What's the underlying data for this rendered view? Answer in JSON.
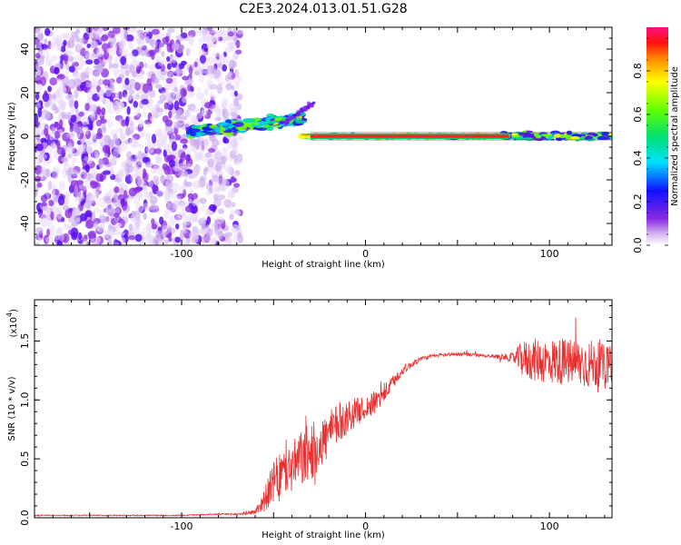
{
  "title": "C2E3.2024.013.01.51.G28",
  "colors": {
    "snr_line": "#e83030",
    "axis": "#000000",
    "background": "#ffffff"
  },
  "chart_data": [
    {
      "type": "heatmap",
      "xlabel": "Height of straight line (km)",
      "ylabel": "Frequency (Hz)",
      "xlim": [
        -180,
        134
      ],
      "ylim": [
        -50,
        50
      ],
      "xticks": [
        -100,
        0,
        100
      ],
      "yticks": [
        -40,
        -20,
        0,
        20,
        40
      ],
      "grid": false,
      "description_regions": [
        {
          "x_range": [
            -180,
            -75
          ],
          "freq_range": [
            -50,
            50
          ],
          "level": "low",
          "note": "broadband noise"
        },
        {
          "x_range": [
            -95,
            -35
          ],
          "freq_center_start": 2,
          "freq_center_end": 8,
          "level": "medium"
        },
        {
          "x_range": [
            -35,
            134
          ],
          "freq_center": 0,
          "level": "high"
        }
      ],
      "colorbar": {
        "label": "Normalized spectral amplitude",
        "range": [
          0.0,
          1.0
        ],
        "ticks": [
          "0.0",
          "0.2",
          "0.4",
          "0.6",
          "0.8"
        ],
        "colormap": "rainbow"
      }
    },
    {
      "type": "line",
      "xlabel": "Height of straight line (km)",
      "ylabel": "SNR (10 * v/v)",
      "y_scale_label": "(x10",
      "y_scale_exp": "4",
      "y_scale_close": ")",
      "xlim": [
        -180,
        134
      ],
      "ylim": [
        0,
        1.85
      ],
      "xticks": [
        -100,
        0,
        100
      ],
      "yticks": [
        "0.0",
        "0.5",
        "1.0",
        "1.5"
      ],
      "series": [
        {
          "x": [
            -180,
            -150,
            -120,
            -100,
            -80,
            -70,
            -60,
            -55,
            -50,
            -45,
            -40,
            -35,
            -30,
            -25,
            -20,
            -15,
            -10,
            -5,
            0,
            5,
            10,
            15,
            20,
            25,
            30,
            40,
            50,
            60,
            70,
            80,
            85,
            90,
            100,
            110,
            120,
            125,
            134
          ],
          "values": [
            0.02,
            0.02,
            0.02,
            0.02,
            0.03,
            0.03,
            0.05,
            0.15,
            0.3,
            0.38,
            0.42,
            0.5,
            0.55,
            0.62,
            0.7,
            0.8,
            0.85,
            0.9,
            0.93,
            0.98,
            1.05,
            1.15,
            1.25,
            1.3,
            1.35,
            1.38,
            1.39,
            1.38,
            1.37,
            1.36,
            1.35,
            1.34,
            1.33,
            1.32,
            1.31,
            1.3,
            1.3
          ],
          "noise": [
            0.005,
            0.005,
            0.005,
            0.005,
            0.006,
            0.008,
            0.02,
            0.1,
            0.18,
            0.2,
            0.22,
            0.25,
            0.25,
            0.22,
            0.2,
            0.18,
            0.15,
            0.12,
            0.1,
            0.1,
            0.08,
            0.06,
            0.04,
            0.03,
            0.02,
            0.015,
            0.015,
            0.015,
            0.015,
            0.04,
            0.15,
            0.18,
            0.2,
            0.2,
            0.22,
            0.2,
            0.15
          ]
        }
      ]
    }
  ]
}
